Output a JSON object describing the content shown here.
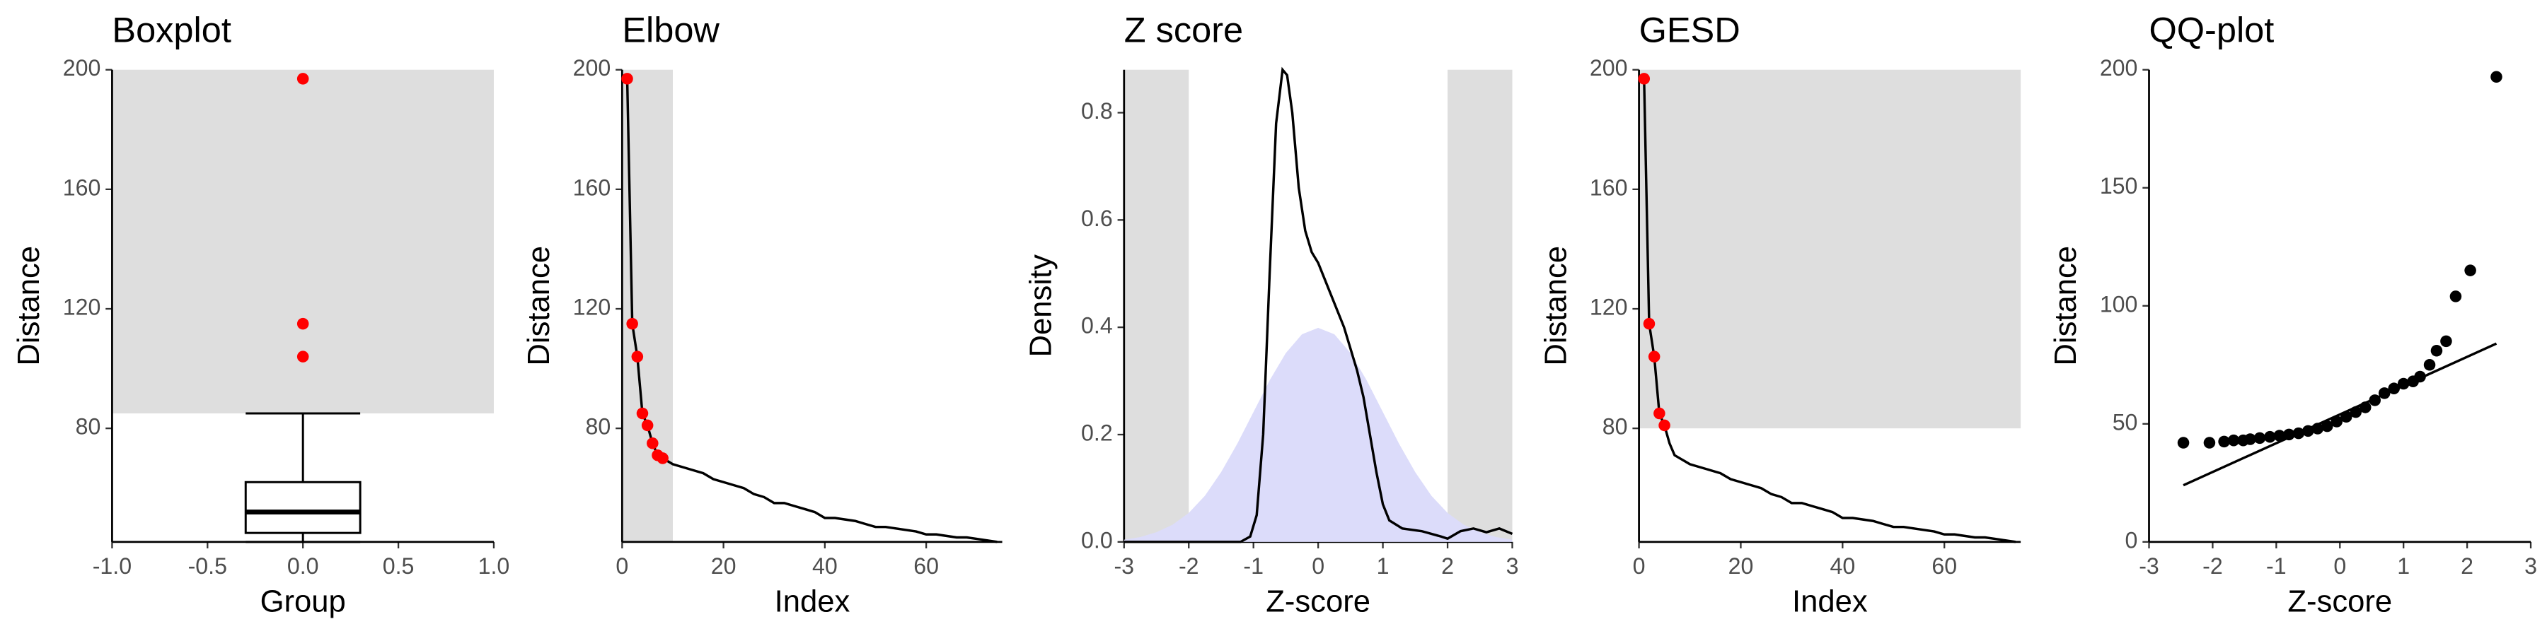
{
  "chart_data": [
    {
      "type": "box",
      "title": "Boxplot",
      "xlabel": "Group",
      "ylabel": "Distance",
      "xlim": [
        -1,
        1
      ],
      "ylim": [
        42,
        200
      ],
      "xticks": [
        {
          "value": -1,
          "label": "-1.0"
        },
        {
          "value": -0.5,
          "label": "-0.5"
        },
        {
          "value": 0,
          "label": "0.0"
        },
        {
          "value": 0.5,
          "label": "0.5"
        },
        {
          "value": 1,
          "label": "1.0"
        }
      ],
      "yticks": [
        80,
        120,
        160,
        200
      ],
      "shaded_regions": [
        {
          "x": [
            -1,
            1
          ],
          "y": [
            85,
            200
          ],
          "color": "#dedede"
        }
      ],
      "box": {
        "position": 0,
        "width": 0.6,
        "whisker_low": 42,
        "q1": 45,
        "median": 52,
        "q3": 62,
        "whisker_high": 85,
        "color": "#000000"
      },
      "series": [
        {
          "mark": "points",
          "color": "#ff0000",
          "x": [
            0,
            0,
            0
          ],
          "values": [
            197,
            115,
            104
          ]
        }
      ]
    },
    {
      "type": "line",
      "title": "Elbow",
      "xlabel": "Index",
      "ylabel": "Distance",
      "xlim": [
        0,
        75
      ],
      "ylim": [
        42,
        200
      ],
      "xticks": [
        0,
        20,
        40,
        60
      ],
      "yticks": [
        80,
        120,
        160,
        200
      ],
      "shaded_regions": [
        {
          "x": [
            0,
            10
          ],
          "y": [
            42,
            200
          ],
          "color": "#dedede"
        }
      ],
      "series": [
        {
          "mark": "line",
          "color": "#000000",
          "x": [
            1,
            2,
            3,
            4,
            5,
            6,
            7,
            8,
            9,
            10,
            12,
            14,
            16,
            18,
            20,
            22,
            24,
            26,
            28,
            30,
            32,
            34,
            36,
            38,
            40,
            42,
            44,
            46,
            48,
            50,
            52,
            54,
            56,
            58,
            60,
            62,
            64,
            66,
            68,
            70,
            72,
            74
          ],
          "values": [
            197,
            115,
            104,
            85,
            81,
            75,
            71,
            70,
            69,
            68,
            67,
            66,
            65,
            63,
            62,
            61,
            60,
            58,
            57,
            55,
            55,
            54,
            53,
            52,
            50,
            50,
            49.5,
            49,
            48,
            47,
            47,
            46.5,
            46,
            45.5,
            44.5,
            44.5,
            44,
            43.5,
            43.5,
            43,
            42.5,
            42
          ]
        },
        {
          "mark": "points",
          "color": "#ff0000",
          "x": [
            1,
            2,
            3,
            4,
            5,
            6,
            7,
            8
          ],
          "values": [
            197,
            115,
            104,
            85,
            81,
            75,
            71,
            70
          ]
        }
      ]
    },
    {
      "type": "density",
      "title": "Z score",
      "xlabel": "Z-score",
      "ylabel": "Density",
      "xlim": [
        -3,
        3
      ],
      "ylim": [
        0,
        0.88
      ],
      "xticks": [
        -3,
        -2,
        -1,
        0,
        1,
        2,
        3
      ],
      "yticks": [
        {
          "value": 0,
          "label": "0.0"
        },
        {
          "value": 0.2,
          "label": "0.2"
        },
        {
          "value": 0.4,
          "label": "0.4"
        },
        {
          "value": 0.6,
          "label": "0.6"
        },
        {
          "value": 0.8,
          "label": "0.8"
        }
      ],
      "shaded_regions": [
        {
          "x": [
            -3,
            -2
          ],
          "y": [
            0,
            0.88
          ],
          "color": "#dedede"
        },
        {
          "x": [
            2,
            3
          ],
          "y": [
            0,
            0.88
          ],
          "color": "#dedede"
        }
      ],
      "series": [
        {
          "mark": "area",
          "color": "#dcdcfa",
          "x": [
            -3,
            -2.75,
            -2.5,
            -2.25,
            -2,
            -1.75,
            -1.5,
            -1.25,
            -1,
            -0.75,
            -0.5,
            -0.25,
            0,
            0.25,
            0.5,
            0.75,
            1,
            1.25,
            1.5,
            1.75,
            2,
            2.25,
            2.5,
            2.75,
            3
          ],
          "values": [
            0.004,
            0.009,
            0.018,
            0.032,
            0.054,
            0.086,
            0.13,
            0.183,
            0.242,
            0.301,
            0.352,
            0.387,
            0.399,
            0.387,
            0.352,
            0.301,
            0.242,
            0.183,
            0.13,
            0.086,
            0.054,
            0.032,
            0.018,
            0.009,
            0.004
          ]
        },
        {
          "mark": "line",
          "color": "#000000",
          "x": [
            -3,
            -1.2,
            -1.05,
            -0.95,
            -0.85,
            -0.75,
            -0.65,
            -0.55,
            -0.48,
            -0.4,
            -0.3,
            -0.2,
            -0.1,
            0,
            0.1,
            0.2,
            0.3,
            0.4,
            0.5,
            0.6,
            0.7,
            0.8,
            0.9,
            1.0,
            1.1,
            1.3,
            1.6,
            1.9,
            2.0,
            2.2,
            2.4,
            2.6,
            2.8,
            3
          ],
          "values": [
            0,
            0,
            0.01,
            0.05,
            0.2,
            0.5,
            0.78,
            0.88,
            0.87,
            0.8,
            0.66,
            0.58,
            0.54,
            0.52,
            0.49,
            0.46,
            0.43,
            0.4,
            0.36,
            0.32,
            0.27,
            0.2,
            0.13,
            0.07,
            0.04,
            0.025,
            0.02,
            0.01,
            0.006,
            0.02,
            0.025,
            0.018,
            0.025,
            0.015
          ]
        }
      ]
    },
    {
      "type": "line",
      "title": "GESD",
      "xlabel": "Index",
      "ylabel": "Distance",
      "xlim": [
        0,
        75
      ],
      "ylim": [
        42,
        200
      ],
      "xticks": [
        0,
        20,
        40,
        60
      ],
      "yticks": [
        80,
        120,
        160,
        200
      ],
      "shaded_regions": [
        {
          "x": [
            0,
            75
          ],
          "y": [
            80,
            200
          ],
          "color": "#dedede"
        }
      ],
      "series": [
        {
          "mark": "line",
          "color": "#000000",
          "x": [
            1,
            2,
            3,
            4,
            5,
            6,
            7,
            8,
            9,
            10,
            12,
            14,
            16,
            18,
            20,
            22,
            24,
            26,
            28,
            30,
            32,
            34,
            36,
            38,
            40,
            42,
            44,
            46,
            48,
            50,
            52,
            54,
            56,
            58,
            60,
            62,
            64,
            66,
            68,
            70,
            72,
            74
          ],
          "values": [
            197,
            115,
            104,
            85,
            81,
            75,
            71,
            70,
            69,
            68,
            67,
            66,
            65,
            63,
            62,
            61,
            60,
            58,
            57,
            55,
            55,
            54,
            53,
            52,
            50,
            50,
            49.5,
            49,
            48,
            47,
            47,
            46.5,
            46,
            45.5,
            44.5,
            44.5,
            44,
            43.5,
            43.5,
            43,
            42.5,
            42
          ]
        },
        {
          "mark": "points",
          "color": "#ff0000",
          "x": [
            1,
            2,
            3,
            4,
            5
          ],
          "values": [
            197,
            115,
            104,
            85,
            81
          ]
        }
      ]
    },
    {
      "type": "scatter",
      "title": "QQ-plot",
      "xlabel": "Z-score",
      "ylabel": "Distance",
      "xlim": [
        -3,
        3
      ],
      "ylim": [
        0,
        200
      ],
      "xticks": [
        -3,
        -2,
        -1,
        0,
        1,
        2,
        3
      ],
      "yticks": [
        0,
        50,
        100,
        150,
        200
      ],
      "series": [
        {
          "mark": "line",
          "color": "#000000",
          "x": [
            -2.46,
            2.46
          ],
          "values": [
            24,
            84
          ]
        },
        {
          "mark": "points",
          "color": "#000000",
          "x": [
            -2.46,
            -2.05,
            -1.82,
            -1.67,
            -1.52,
            -1.41,
            -1.26,
            -1.1,
            -0.95,
            -0.8,
            -0.65,
            -0.5,
            -0.35,
            -0.2,
            -0.05,
            0.1,
            0.25,
            0.4,
            0.55,
            0.7,
            0.85,
            1.0,
            1.15,
            1.26,
            1.41,
            1.52,
            1.67,
            1.82,
            2.05,
            2.46
          ],
          "values": [
            42,
            42,
            42.5,
            43,
            43,
            43.5,
            44,
            44.5,
            45,
            45.5,
            46,
            47,
            48,
            49,
            51,
            53,
            55,
            57,
            60,
            63,
            65,
            67,
            68,
            70,
            75,
            81,
            85,
            104,
            115,
            197
          ]
        }
      ]
    }
  ]
}
